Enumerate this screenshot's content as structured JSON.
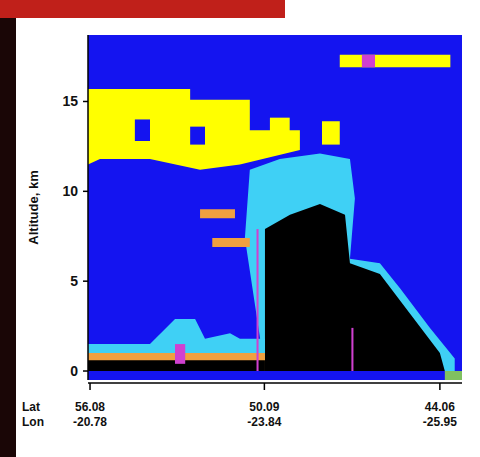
{
  "chart_data": {
    "type": "curtain",
    "ylabel": "Altitude, km",
    "ylim": [
      -0.5,
      18.7
    ],
    "yticks": [
      0,
      5,
      10,
      15
    ],
    "xlim": [
      56.15,
      43.3
    ],
    "xticks": [
      56.08,
      50.09,
      44.06
    ],
    "x_rows": [
      "Lat",
      "Lon"
    ],
    "lon_ticks": [
      -20.78,
      -23.84,
      -25.95
    ],
    "regions": [
      {
        "color": "#1414f0",
        "points": [
          [
            56.15,
            -0.5
          ],
          [
            43.3,
            -0.5
          ],
          [
            43.3,
            18.7
          ],
          [
            56.15,
            18.7
          ]
        ]
      },
      {
        "color": "#ffff00",
        "points": [
          [
            56.15,
            15.7
          ],
          [
            52.64,
            15.7
          ],
          [
            52.64,
            15.1
          ],
          [
            50.59,
            15.1
          ],
          [
            50.59,
            13.4
          ],
          [
            48.87,
            13.4
          ],
          [
            48.87,
            12.3
          ],
          [
            50.93,
            11.5
          ],
          [
            52.3,
            11.2
          ],
          [
            54.02,
            11.8
          ],
          [
            55.74,
            11.8
          ],
          [
            56.15,
            11.5
          ]
        ]
      },
      {
        "color": "#1414f0",
        "points": [
          [
            54.54,
            14.0
          ],
          [
            54.02,
            14.0
          ],
          [
            54.02,
            12.8
          ],
          [
            54.54,
            12.8
          ]
        ]
      },
      {
        "color": "#1414f0",
        "points": [
          [
            52.64,
            13.6
          ],
          [
            52.13,
            13.6
          ],
          [
            52.13,
            12.6
          ],
          [
            52.64,
            12.6
          ]
        ]
      },
      {
        "color": "#ffff00",
        "points": [
          [
            49.9,
            14.1
          ],
          [
            49.22,
            14.1
          ],
          [
            49.22,
            12.9
          ],
          [
            49.9,
            12.9
          ]
        ]
      },
      {
        "color": "#ffff00",
        "points": [
          [
            48.11,
            13.9
          ],
          [
            47.5,
            13.9
          ],
          [
            47.5,
            12.6
          ],
          [
            48.11,
            12.6
          ]
        ]
      },
      {
        "color": "#3fd0f5",
        "points": [
          [
            50.76,
            7.4
          ],
          [
            50.59,
            11.2
          ],
          [
            49.56,
            11.8
          ],
          [
            48.18,
            12.1
          ],
          [
            47.15,
            11.8
          ],
          [
            46.98,
            9.6
          ],
          [
            47.15,
            6.25
          ],
          [
            46.12,
            6.0
          ],
          [
            45.43,
            4.6
          ],
          [
            44.4,
            2.4
          ],
          [
            43.55,
            0.7
          ],
          [
            43.55,
            0
          ],
          [
            50.07,
            0
          ]
        ]
      },
      {
        "color": "#000000",
        "points": [
          [
            50.07,
            0
          ],
          [
            50.07,
            7.9
          ],
          [
            49.21,
            8.7
          ],
          [
            48.18,
            9.3
          ],
          [
            47.32,
            8.7
          ],
          [
            47.15,
            6.0
          ],
          [
            46.12,
            5.4
          ],
          [
            45.09,
            3.2
          ],
          [
            44.06,
            1.0
          ],
          [
            43.89,
            0
          ]
        ]
      },
      {
        "color": "#3fd0f5",
        "points": [
          [
            56.15,
            0
          ],
          [
            56.15,
            1.5
          ],
          [
            54.02,
            1.5
          ],
          [
            53.16,
            2.9
          ],
          [
            52.47,
            2.9
          ],
          [
            52.13,
            1.8
          ],
          [
            51.27,
            2.1
          ],
          [
            50.93,
            1.8
          ],
          [
            50.07,
            1.8
          ],
          [
            50.07,
            0
          ]
        ]
      },
      {
        "color": "#f0a040",
        "points": [
          [
            56.15,
            0
          ],
          [
            56.15,
            1.0
          ],
          [
            50.07,
            1.0
          ],
          [
            50.07,
            0
          ]
        ]
      },
      {
        "color": "#000000",
        "points": [
          [
            56.15,
            0
          ],
          [
            56.15,
            0.6
          ],
          [
            50.07,
            0.6
          ],
          [
            50.07,
            0
          ]
        ]
      },
      {
        "color": "#f0a040",
        "points": [
          [
            52.3,
            9.0
          ],
          [
            51.1,
            9.0
          ],
          [
            51.1,
            8.5
          ],
          [
            52.3,
            8.5
          ]
        ]
      },
      {
        "color": "#f0a040",
        "points": [
          [
            51.88,
            7.4
          ],
          [
            50.59,
            7.4
          ],
          [
            50.59,
            6.9
          ],
          [
            51.88,
            6.9
          ]
        ]
      },
      {
        "color": "#d040d0",
        "points": [
          [
            50.36,
            0
          ],
          [
            50.36,
            7.9
          ],
          [
            50.29,
            7.9
          ],
          [
            50.29,
            0
          ]
        ]
      },
      {
        "color": "#d040d0",
        "points": [
          [
            47.1,
            0
          ],
          [
            47.1,
            2.4
          ],
          [
            47.03,
            2.4
          ],
          [
            47.03,
            0
          ]
        ]
      },
      {
        "color": "#d040d0",
        "points": [
          [
            53.16,
            0.4
          ],
          [
            53.16,
            1.5
          ],
          [
            52.81,
            1.5
          ],
          [
            52.81,
            0.4
          ]
        ]
      },
      {
        "color": "#80c060",
        "points": [
          [
            43.89,
            -0.5
          ],
          [
            43.89,
            0
          ],
          [
            43.3,
            0
          ],
          [
            43.3,
            -0.5
          ]
        ]
      },
      {
        "color": "#ffff00",
        "points": [
          [
            47.5,
            17.6
          ],
          [
            43.7,
            17.6
          ],
          [
            43.7,
            16.9
          ],
          [
            47.5,
            16.9
          ]
        ]
      },
      {
        "color": "#d040d0",
        "points": [
          [
            46.74,
            17.6
          ],
          [
            46.29,
            17.6
          ],
          [
            46.29,
            16.9
          ],
          [
            46.74,
            16.9
          ]
        ]
      }
    ]
  }
}
